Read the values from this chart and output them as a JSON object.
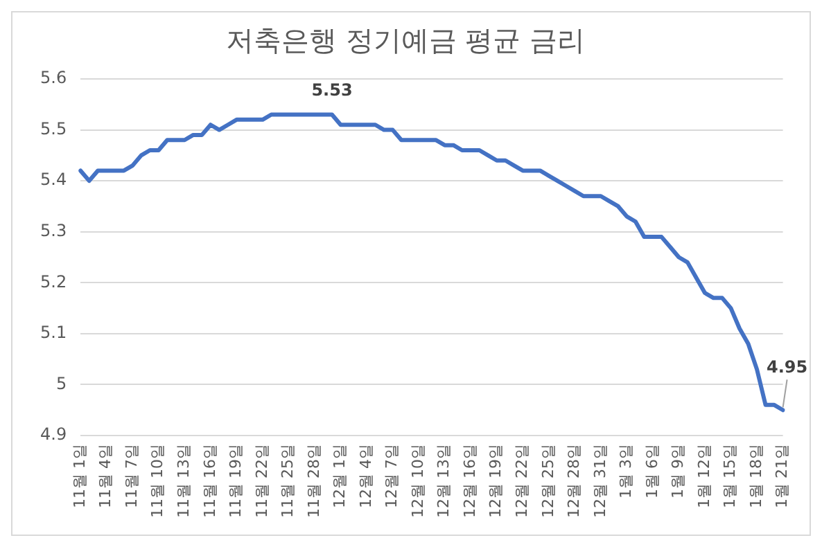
{
  "chart_data": {
    "type": "line",
    "title": "저축은행 정기예금 평균 금리",
    "categories": [
      "11월 1일",
      null,
      null,
      "11월 4일",
      null,
      null,
      "11월 7일",
      null,
      null,
      "11월 10일",
      null,
      null,
      "11월 13일",
      null,
      null,
      "11월 16일",
      null,
      null,
      "11월 19일",
      null,
      null,
      "11월 22일",
      null,
      null,
      "11월 25일",
      null,
      null,
      "11월 28일",
      null,
      null,
      "12월 1일",
      null,
      null,
      "12월 4일",
      null,
      null,
      "12월 7일",
      null,
      null,
      "12월 10일",
      null,
      null,
      "12월 13일",
      null,
      null,
      "12월 16일",
      null,
      null,
      "12월 19일",
      null,
      null,
      "12월 22일",
      null,
      null,
      "12월 25일",
      null,
      null,
      "12월 28일",
      null,
      null,
      "12월 31일",
      null,
      null,
      "1월 3일",
      null,
      null,
      "1월 6일",
      null,
      null,
      "1월 9일",
      null,
      null,
      "1월 12일",
      null,
      null,
      "1월 15일",
      null,
      null,
      "1월 18일",
      null,
      null,
      "1월 21일"
    ],
    "series": [
      {
        "color": "#4472c4",
        "values": [
          5.42,
          5.4,
          5.42,
          5.42,
          5.42,
          5.42,
          5.43,
          5.45,
          5.46,
          5.46,
          5.48,
          5.48,
          5.48,
          5.49,
          5.49,
          5.51,
          5.5,
          5.51,
          5.52,
          5.52,
          5.52,
          5.52,
          5.53,
          5.53,
          5.53,
          5.53,
          5.53,
          5.53,
          5.53,
          5.53,
          5.51,
          5.51,
          5.51,
          5.51,
          5.51,
          5.5,
          5.5,
          5.48,
          5.48,
          5.48,
          5.48,
          5.48,
          5.47,
          5.47,
          5.46,
          5.46,
          5.46,
          5.45,
          5.44,
          5.44,
          5.43,
          5.42,
          5.42,
          5.42,
          5.41,
          5.4,
          5.39,
          5.38,
          5.37,
          5.37,
          5.37,
          5.36,
          5.35,
          5.33,
          5.32,
          5.29,
          5.29,
          5.29,
          5.27,
          5.25,
          5.24,
          5.21,
          5.18,
          5.17,
          5.17,
          5.15,
          5.11,
          5.08,
          5.03,
          4.96,
          4.96,
          4.95
        ],
        "value_labels": [
          null,
          null,
          null,
          null,
          null,
          null,
          null,
          null,
          null,
          null,
          null,
          null,
          null,
          null,
          null,
          null,
          null,
          null,
          null,
          null,
          null,
          null,
          null,
          null,
          null,
          null,
          null,
          null,
          null,
          "5.53",
          null,
          null,
          null,
          null,
          null,
          null,
          null,
          null,
          null,
          null,
          null,
          null,
          null,
          null,
          null,
          null,
          null,
          null,
          null,
          null,
          null,
          null,
          null,
          null,
          null,
          null,
          null,
          null,
          null,
          null,
          null,
          null,
          null,
          null,
          null,
          null,
          null,
          null,
          null,
          null,
          null,
          null,
          null,
          null,
          null,
          null,
          null,
          null,
          null,
          null,
          null,
          "4.95"
        ]
      }
    ],
    "ylim": [
      4.9,
      5.6
    ],
    "yticks": [
      4.9,
      5,
      5.1,
      5.2,
      5.3,
      5.4,
      5.5,
      5.6
    ],
    "grid": "y",
    "legend": false,
    "marker": "none",
    "line_style": "solid"
  }
}
